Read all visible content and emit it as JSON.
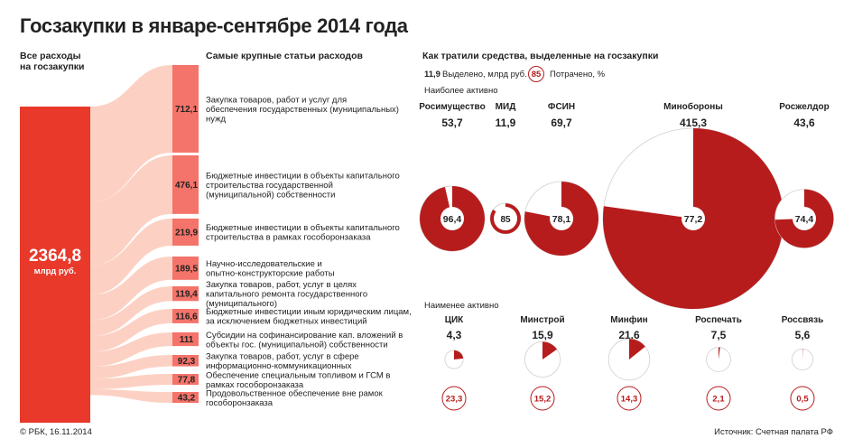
{
  "title": "Госзакупки в январе-сентябре 2014 года",
  "left_header": "Все расходы на госзакупки",
  "middle_header": "Самые крупные статьи расходов",
  "right_header": "Как тратили средства, выделенные на госзакупки",
  "total": {
    "value": "2364,8",
    "unit": "млрд руб."
  },
  "legend": {
    "allocated_value": "11,9",
    "allocated_label": "Выделено, млрд руб.",
    "spent_value": "85",
    "spent_label": "Потрачено, %"
  },
  "most_active_label": "Наиболее активно",
  "least_active_label": "Наименее активно",
  "footer_left": "© РБК, 16.11.2014",
  "footer_right": "Источник: Счетная палата РФ",
  "colors": {
    "dark_red": "#b71c1c",
    "bright_red": "#e8392b",
    "salmon": "#f4736a",
    "pale": "#fbc9b9",
    "pale_light": "#fde3d8"
  },
  "chart_data": [
    {
      "type": "bar",
      "unit": "млрд руб.",
      "categories": [
        "Закупка товаров, работ и услуг для обеспечения государственных (муниципальных) нужд",
        "Бюджетные инвестиции в объекты капитального строительства государственной (муниципальной) собственности",
        "Бюджетные инвестиции в объекты капитального строительства в рамках гособоронзаказа",
        "Научно-исследовательские и опытно-конструкторские работы",
        "Закупка товаров, работ, услуг в целях капитального ремонта государственного (муниципального)",
        "Бюджетные инвестиции иным юридическим лицам, за исключением бюджетных инвестиций",
        "Субсидии на софинансирование кап. вложений в объекты гос. (муниципальной) собственности",
        "Закупка товаров, работ, услуг в сфере информационно-коммуникационных",
        "Обеспечение специальным топливом и ГСМ в рамках гособоронзаказа",
        "Продовольственное обеспечение вне рамок гособоронзаказа"
      ],
      "values": [
        712.1,
        476.1,
        219.9,
        189.5,
        119.4,
        116.6,
        111,
        92.3,
        77.8,
        43.2
      ],
      "value_labels": [
        "712,1",
        "476,1",
        "219,9",
        "189,5",
        "119,4",
        "116,6",
        "111",
        "92,3",
        "77,8",
        "43,2"
      ]
    },
    {
      "type": "pie",
      "group": "Наиболее активно",
      "items": [
        {
          "name": "Росимущество",
          "allocated": 53.7,
          "allocated_label": "53,7",
          "spent_pct": 96.4,
          "spent_label": "96,4"
        },
        {
          "name": "МИД",
          "allocated": 11.9,
          "allocated_label": "11,9",
          "spent_pct": 85,
          "spent_label": "85"
        },
        {
          "name": "ФСИН",
          "allocated": 69.7,
          "allocated_label": "69,7",
          "spent_pct": 78.1,
          "spent_label": "78,1"
        },
        {
          "name": "Минобороны",
          "allocated": 415.3,
          "allocated_label": "415,3",
          "spent_pct": 77.2,
          "spent_label": "77,2"
        },
        {
          "name": "Росжелдор",
          "allocated": 43.6,
          "allocated_label": "43,6",
          "spent_pct": 74.4,
          "spent_label": "74,4"
        }
      ]
    },
    {
      "type": "pie",
      "group": "Наименее активно",
      "items": [
        {
          "name": "ЦИК",
          "allocated": 4.3,
          "allocated_label": "4,3",
          "spent_pct": 23.3,
          "spent_label": "23,3"
        },
        {
          "name": "Минстрой",
          "allocated": 15.9,
          "allocated_label": "15,9",
          "spent_pct": 15.2,
          "spent_label": "15,2"
        },
        {
          "name": "Минфин",
          "allocated": 21.6,
          "allocated_label": "21,6",
          "spent_pct": 14.3,
          "spent_label": "14,3"
        },
        {
          "name": "Роспечать",
          "allocated": 7.5,
          "allocated_label": "7,5",
          "spent_pct": 2.1,
          "spent_label": "2,1"
        },
        {
          "name": "Россвязь",
          "allocated": 5.6,
          "allocated_label": "5,6",
          "spent_pct": 0.5,
          "spent_label": "0,5"
        }
      ]
    }
  ]
}
